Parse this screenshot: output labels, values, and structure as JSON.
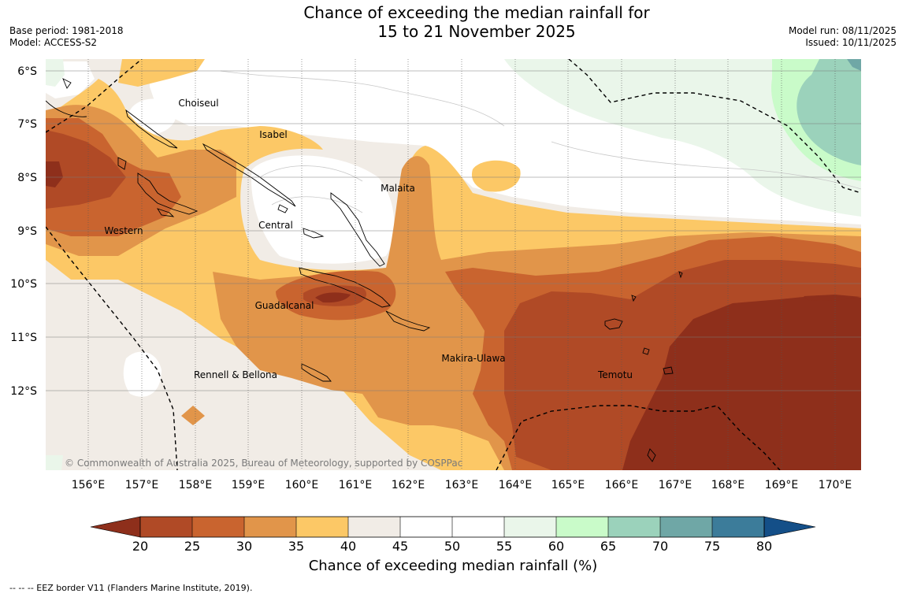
{
  "header": {
    "title_line1": "Chance of exceeding the median rainfall for",
    "title_line2": "15 to 21 November 2025",
    "base_period": "Base period: 1981-2018",
    "model": "Model: ACCESS-S2",
    "model_run": "Model run: 08/11/2025",
    "issued": "Issued: 10/11/2025"
  },
  "map": {
    "copyright": "© Commonwealth of Australia 2025, Bureau of Meteorology, supported by COSPPac",
    "lat_labels": [
      "6°S",
      "7°S",
      "8°S",
      "9°S",
      "10°S",
      "11°S",
      "12°S"
    ],
    "lon_labels": [
      "156°E",
      "157°E",
      "158°E",
      "159°E",
      "160°E",
      "161°E",
      "162°E",
      "163°E",
      "164°E",
      "165°E",
      "166°E",
      "167°E",
      "168°E",
      "169°E",
      "170°E"
    ],
    "provinces": [
      "Choiseul",
      "Isabel",
      "Malaita",
      "Western",
      "Central",
      "Guadalcanal",
      "Makira-Ulawa",
      "Rennell & Bellona",
      "Temotu"
    ]
  },
  "colorbar": {
    "title": "Chance of exceeding median rainfall (%)",
    "tick_labels": [
      "20",
      "25",
      "30",
      "35",
      "40",
      "45",
      "50",
      "55",
      "60",
      "65",
      "70",
      "75",
      "80"
    ],
    "colors": [
      "#8e2f1b",
      "#b04a26",
      "#c9642f",
      "#e1954a",
      "#fcc866",
      "#f1ece6",
      "#ffffff",
      "#ffffff",
      "#eaf6ea",
      "#c9fbc9",
      "#9bd2bb",
      "#6fa7a6",
      "#3c7c9a",
      "#144f88"
    ]
  },
  "footer": {
    "eez_note": "--  --  -- EEZ border V11 (Flanders Marine Institute, 2019)."
  }
}
